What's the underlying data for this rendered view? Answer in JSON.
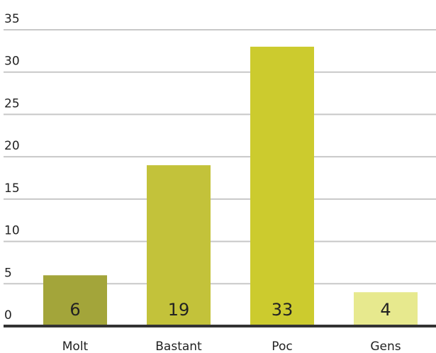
{
  "chart_data": {
    "type": "bar",
    "categories": [
      "Molt",
      "Bastant",
      "Poc",
      "Gens"
    ],
    "values": [
      6,
      19,
      33,
      4
    ],
    "colors": [
      "#a3a53a",
      "#c3c23a",
      "#cccb2e",
      "#e7e98e"
    ],
    "ylim": [
      0,
      35
    ],
    "yticks": [
      0,
      5,
      10,
      15,
      20,
      25,
      30,
      35
    ],
    "grid": true
  }
}
